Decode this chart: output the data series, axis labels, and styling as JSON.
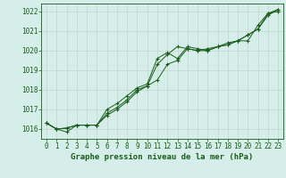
{
  "xlabel": "Graphe pression niveau de la mer (hPa)",
  "ylim": [
    1015.5,
    1022.4
  ],
  "xlim": [
    -0.5,
    23.5
  ],
  "yticks": [
    1016,
    1017,
    1018,
    1019,
    1020,
    1021,
    1022
  ],
  "xticks": [
    0,
    1,
    2,
    3,
    4,
    5,
    6,
    7,
    8,
    9,
    10,
    11,
    12,
    13,
    14,
    15,
    16,
    17,
    18,
    19,
    20,
    21,
    22,
    23
  ],
  "background_color": "#d5eeea",
  "grid_color": "#c8d8d0",
  "line_color": "#1a5c1a",
  "series1": [
    1016.3,
    1016.0,
    1015.85,
    1016.2,
    1016.2,
    1016.2,
    1017.0,
    1017.3,
    1017.7,
    1018.1,
    1018.3,
    1019.6,
    1019.9,
    1019.6,
    1020.2,
    1020.1,
    1020.0,
    1020.2,
    1020.3,
    1020.5,
    1020.5,
    1021.3,
    1021.9,
    1022.0
  ],
  "series2": [
    1016.3,
    1016.0,
    1016.05,
    1016.2,
    1016.2,
    1016.2,
    1016.8,
    1017.1,
    1017.5,
    1018.0,
    1018.2,
    1019.3,
    1019.8,
    1020.2,
    1020.1,
    1020.0,
    1020.1,
    1020.2,
    1020.3,
    1020.5,
    1020.8,
    1021.1,
    1021.9,
    1022.1
  ],
  "series3": [
    1016.3,
    1016.0,
    1016.05,
    1016.2,
    1016.2,
    1016.2,
    1016.7,
    1017.0,
    1017.4,
    1017.9,
    1018.2,
    1018.5,
    1019.3,
    1019.5,
    1020.1,
    1020.0,
    1020.0,
    1020.2,
    1020.4,
    1020.5,
    1020.8,
    1021.1,
    1021.8,
    1022.1
  ],
  "tick_fontsize": 5.5,
  "label_fontsize": 6.5,
  "fig_width": 3.2,
  "fig_height": 2.0,
  "dpi": 100
}
